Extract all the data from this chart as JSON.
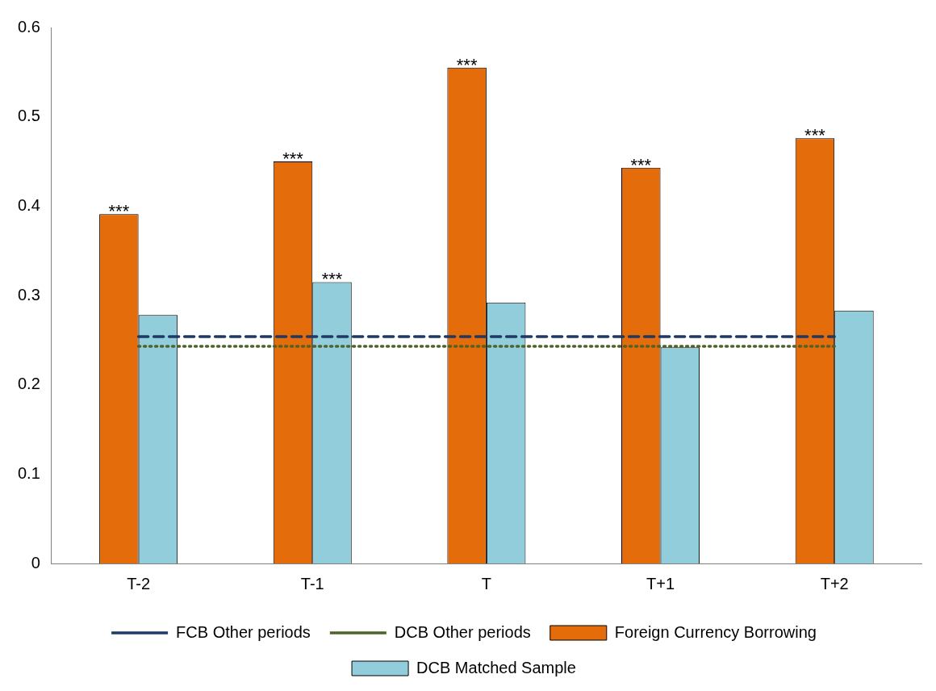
{
  "chart_data": {
    "type": "bar",
    "categories": [
      "T-2",
      "T-1",
      "T",
      "T+1",
      "T+2"
    ],
    "series": [
      {
        "name": "Foreign Currency Borrowing",
        "color": "#e46c0a",
        "values": [
          0.391,
          0.45,
          0.555,
          0.443,
          0.476
        ]
      },
      {
        "name": "DCB Matched Sample",
        "color": "#92cddc",
        "values": [
          0.278,
          0.315,
          0.292,
          0.242,
          0.283
        ]
      },
      {
        "name": "FCB Other periods",
        "type": "line",
        "color": "#1f3864",
        "line_style": "dashed",
        "marker": "none",
        "values": [
          0.254,
          0.254,
          0.254,
          0.254,
          0.254
        ]
      },
      {
        "name": "DCB Other periods",
        "type": "line",
        "color": "#4f6228",
        "line_style": "dotted",
        "marker": "none",
        "values": [
          0.243,
          0.243,
          0.243,
          0.243,
          0.243
        ]
      }
    ],
    "ylim": [
      0,
      0.6
    ],
    "yticks": [
      0,
      0.1,
      0.2,
      0.3,
      0.4,
      0.5,
      0.6
    ],
    "grid": false,
    "legend": "bottom",
    "annotations": [
      {
        "text": "***",
        "x": "T-2",
        "y": 0.391
      },
      {
        "text": "***",
        "x": "T-1",
        "y": 0.45
      },
      {
        "text": "***",
        "x": "T-1",
        "y": 0.315
      },
      {
        "text": "***",
        "x": "T",
        "y": 0.555
      },
      {
        "text": "***",
        "x": "T+1",
        "y": 0.443
      },
      {
        "text": "***",
        "x": "T+2",
        "y": 0.476
      }
    ]
  }
}
